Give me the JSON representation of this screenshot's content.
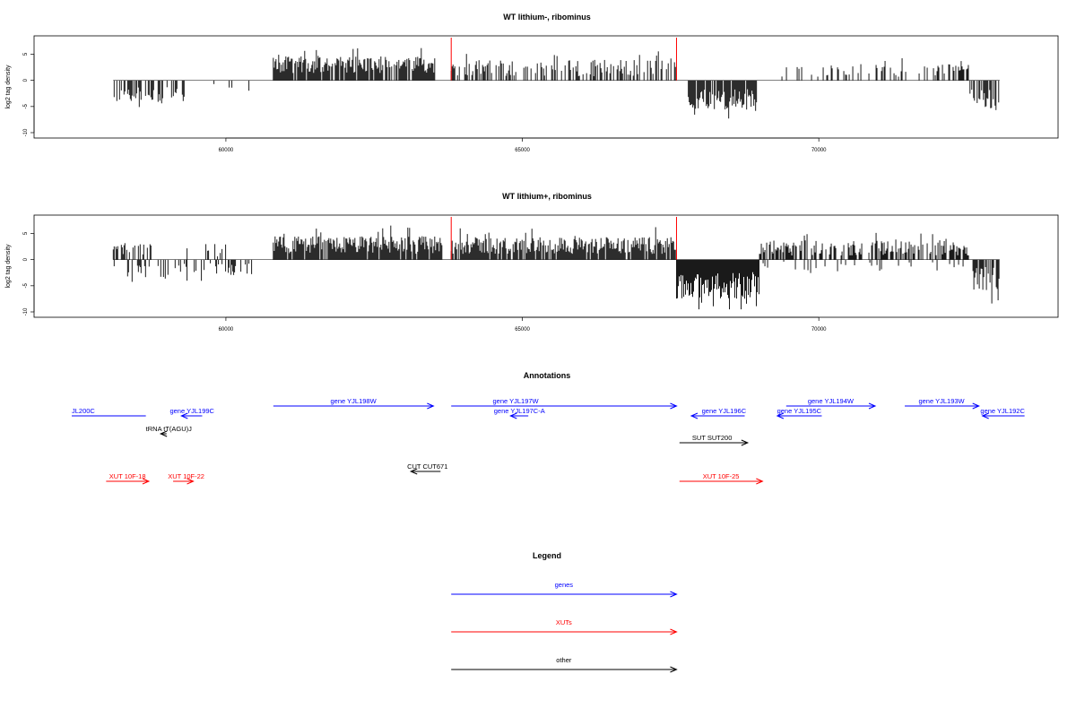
{
  "chart_data": [
    {
      "type": "bar",
      "title": "WT lithium-, ribominus",
      "xlabel": "",
      "ylabel": "log2 tag density",
      "xlim": [
        57400,
        73400
      ],
      "ylim": [
        -10,
        8
      ],
      "x_ticks": [
        60000,
        65000,
        70000
      ],
      "x_tick_labels": [
        "60000",
        "65000",
        "70000"
      ],
      "y_ticks": [
        -10,
        -5,
        0,
        5
      ],
      "y_tick_labels": [
        "-10",
        "-5",
        "0",
        "5"
      ],
      "markers": [
        {
          "x": 63800,
          "color": "#ff0000"
        },
        {
          "x": 67600,
          "color": "#ff0000"
        }
      ],
      "segments": [
        {
          "start": 58100,
          "end": 59300,
          "sign": -1,
          "mean": 2.8,
          "spread": 1.5,
          "density": 0.5
        },
        {
          "start": 59300,
          "end": 60500,
          "sign": -1,
          "mean": 1.6,
          "spread": 1.2,
          "density": 0.08
        },
        {
          "start": 60800,
          "end": 63550,
          "sign": 1,
          "mean": 3.0,
          "spread": 1.6,
          "density": 0.85
        },
        {
          "start": 63800,
          "end": 67600,
          "sign": 1,
          "mean": 2.4,
          "spread": 1.6,
          "density": 0.45
        },
        {
          "start": 67800,
          "end": 68950,
          "sign": -1,
          "mean": 3.6,
          "spread": 2.0,
          "density": 0.9
        },
        {
          "start": 69000,
          "end": 72250,
          "sign": 1,
          "mean": 1.9,
          "spread": 1.2,
          "density": 0.18
        },
        {
          "start": 72250,
          "end": 72550,
          "sign": 1,
          "mean": 2.5,
          "spread": 1.0,
          "density": 0.6
        },
        {
          "start": 72550,
          "end": 73050,
          "sign": -1,
          "mean": 3.6,
          "spread": 2.2,
          "density": 0.7
        }
      ]
    },
    {
      "type": "bar",
      "title": "WT lithium+, ribominus",
      "xlabel": "",
      "ylabel": "log2 tag density",
      "xlim": [
        57400,
        73400
      ],
      "ylim": [
        -10,
        8
      ],
      "x_ticks": [
        60000,
        65000,
        70000
      ],
      "x_tick_labels": [
        "60000",
        "65000",
        "70000"
      ],
      "y_ticks": [
        -10,
        -5,
        0,
        5
      ],
      "y_tick_labels": [
        "-10",
        "-5",
        "0",
        "5"
      ],
      "markers": [
        {
          "x": 63800,
          "color": "#ff0000"
        },
        {
          "x": 67600,
          "color": "#ff0000"
        }
      ],
      "segments": [
        {
          "start": 58100,
          "end": 58750,
          "sign": 1,
          "mean": 2.0,
          "spread": 1.2,
          "density": 0.4
        },
        {
          "start": 58100,
          "end": 59300,
          "sign": -1,
          "mean": 2.3,
          "spread": 1.4,
          "density": 0.3
        },
        {
          "start": 59300,
          "end": 60500,
          "sign": -1,
          "mean": 2.0,
          "spread": 1.3,
          "density": 0.4
        },
        {
          "start": 59300,
          "end": 60000,
          "sign": 1,
          "mean": 1.8,
          "spread": 1.2,
          "density": 0.15
        },
        {
          "start": 60800,
          "end": 63650,
          "sign": 1,
          "mean": 2.8,
          "spread": 1.7,
          "density": 0.95
        },
        {
          "start": 63800,
          "end": 67600,
          "sign": 1,
          "mean": 2.7,
          "spread": 1.6,
          "density": 0.9
        },
        {
          "start": 67600,
          "end": 69000,
          "sign": -1,
          "mean": 5.0,
          "spread": 2.6,
          "density": 1.0
        },
        {
          "start": 69000,
          "end": 72550,
          "sign": 1,
          "mean": 2.2,
          "spread": 1.4,
          "density": 0.6
        },
        {
          "start": 69000,
          "end": 72550,
          "sign": -1,
          "mean": 1.4,
          "spread": 1.0,
          "density": 0.1
        },
        {
          "start": 72600,
          "end": 73050,
          "sign": -1,
          "mean": 3.8,
          "spread": 2.4,
          "density": 0.8
        }
      ]
    }
  ],
  "annotations": {
    "title": "Annotations",
    "features": [
      {
        "label": "JL200C",
        "start": 57400,
        "end": 58650,
        "strand": "-",
        "row": 0,
        "color": "#0000ff",
        "label_x": 57400,
        "label_align": "start",
        "arrow": false
      },
      {
        "label": "gene YJL199C",
        "start": 59250,
        "end": 59600,
        "strand": "-",
        "row": 0,
        "color": "#0000ff",
        "label_x": 59430,
        "label_align": "middle",
        "arrow": true
      },
      {
        "label": "gene YJL198W",
        "start": 60800,
        "end": 63500,
        "strand": "+",
        "row": -1,
        "color": "#0000ff",
        "label_x": 62150,
        "label_align": "middle",
        "arrow": true
      },
      {
        "label": "gene YJL197W",
        "start": 63800,
        "end": 67600,
        "strand": "+",
        "row": -1,
        "color": "#0000ff",
        "label_x": 64500,
        "label_align": "start",
        "arrow": true
      },
      {
        "label": "gene YJL197C-A",
        "start": 64800,
        "end": 65100,
        "strand": "-",
        "row": 0,
        "color": "#0000ff",
        "label_x": 64950,
        "label_align": "middle",
        "arrow": true
      },
      {
        "label": "gene YJL196C",
        "start": 67850,
        "end": 68750,
        "strand": "-",
        "row": 0,
        "color": "#0000ff",
        "label_x": 68400,
        "label_align": "middle",
        "arrow": true
      },
      {
        "label": "gene YJL195C",
        "start": 69300,
        "end": 70050,
        "strand": "-",
        "row": 0,
        "color": "#0000ff",
        "label_x": 69670,
        "label_align": "middle",
        "arrow": true
      },
      {
        "label": "gene YJL194W",
        "start": 69450,
        "end": 70950,
        "strand": "+",
        "row": -1,
        "color": "#0000ff",
        "label_x": 70200,
        "label_align": "middle",
        "arrow": true
      },
      {
        "label": "gene YJL193W",
        "start": 71450,
        "end": 72700,
        "strand": "+",
        "row": -1,
        "color": "#0000ff",
        "label_x": 72070,
        "label_align": "middle",
        "arrow": true
      },
      {
        "label": "gene YJL192C",
        "start": 72760,
        "end": 73470,
        "strand": "-",
        "row": 0,
        "color": "#0000ff",
        "label_x": 73100,
        "label_align": "middle",
        "arrow": true
      },
      {
        "label": "tRNA tT(AGU)J",
        "start": 58900,
        "end": 59000,
        "strand": "-",
        "row": 1,
        "color": "#000000",
        "label_x": 58650,
        "label_align": "start",
        "arrow": true
      },
      {
        "label": "SUT SUT200",
        "start": 67650,
        "end": 68800,
        "strand": "+",
        "row": 2,
        "color": "#000000",
        "label_x": 68200,
        "label_align": "middle",
        "arrow": true
      },
      {
        "label": "CUT CUT671",
        "start": 63120,
        "end": 63620,
        "strand": "-",
        "row": 3,
        "color": "#000000",
        "label_x": 63400,
        "label_align": "middle",
        "arrow": true
      },
      {
        "label": "XUT 10F-18",
        "start": 57980,
        "end": 58700,
        "strand": "+",
        "row": 4,
        "color": "#ff0000",
        "label_x": 58340,
        "label_align": "middle",
        "arrow": true
      },
      {
        "label": "XUT 10F-22",
        "start": 59110,
        "end": 59450,
        "strand": "+",
        "row": 4,
        "color": "#ff0000",
        "label_x": 59330,
        "label_align": "middle",
        "arrow": true
      },
      {
        "label": "XUT 10F-25",
        "start": 67650,
        "end": 69050,
        "strand": "+",
        "row": 4,
        "color": "#ff0000",
        "label_x": 68350,
        "label_align": "middle",
        "arrow": true
      }
    ]
  },
  "legend": {
    "title": "Legend",
    "items": [
      {
        "label": "genes",
        "color": "#0000ff"
      },
      {
        "label": "XUTs",
        "color": "#ff0000"
      },
      {
        "label": "other",
        "color": "#000000"
      }
    ]
  }
}
